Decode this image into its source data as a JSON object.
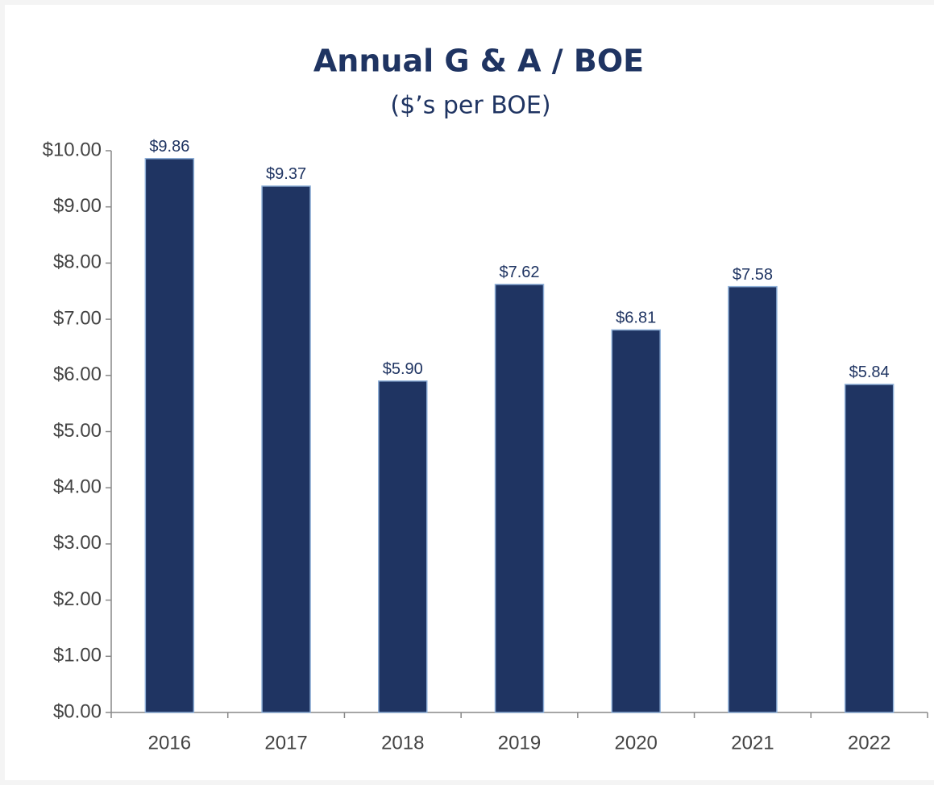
{
  "chart_data": {
    "type": "bar",
    "title": "Annual G & A / BOE",
    "subtitle": "($’s per BOE)",
    "categories": [
      "2016",
      "2017",
      "2018",
      "2019",
      "2020",
      "2021",
      "2022"
    ],
    "values": [
      9.86,
      9.37,
      5.9,
      7.62,
      6.81,
      7.58,
      5.84
    ],
    "value_labels": [
      "$9.86",
      "$9.37",
      "$5.90",
      "$7.62",
      "$6.81",
      "$7.58",
      "$5.84"
    ],
    "color": "#1f3462",
    "ylim": [
      0,
      10
    ],
    "yticks": [
      {
        "value": 0,
        "label": "$0.00"
      },
      {
        "value": 1,
        "label": "$1.00"
      },
      {
        "value": 2,
        "label": "$2.00"
      },
      {
        "value": 3,
        "label": "$3.00"
      },
      {
        "value": 4,
        "label": "$4.00"
      },
      {
        "value": 5,
        "label": "$5.00"
      },
      {
        "value": 6,
        "label": "$6.00"
      },
      {
        "value": 7,
        "label": "$7.00"
      },
      {
        "value": 8,
        "label": "$8.00"
      },
      {
        "value": 9,
        "label": "$9.00"
      },
      {
        "value": 10,
        "label": "$10.00"
      }
    ],
    "grid": false
  }
}
